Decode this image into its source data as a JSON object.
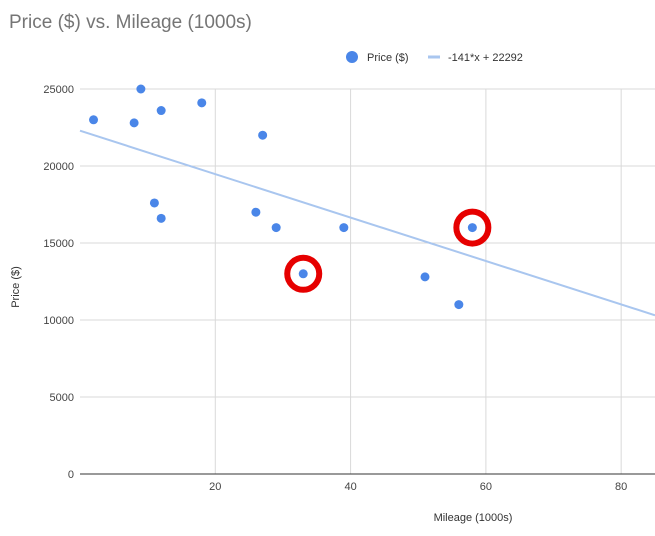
{
  "chart_data": {
    "type": "scatter",
    "title": "Price ($) vs. Mileage (1000s)",
    "xlabel": "Mileage (1000s)",
    "ylabel": "Price ($)",
    "xlim": [
      0,
      85
    ],
    "ylim": [
      0,
      25000
    ],
    "x_ticks": [
      20,
      40,
      60,
      80
    ],
    "y_ticks": [
      0,
      5000,
      10000,
      15000,
      20000,
      25000
    ],
    "grid": true,
    "legend": {
      "position": "top",
      "entries": [
        {
          "label": "Price ($)",
          "kind": "point",
          "color": "#4a86e8"
        },
        {
          "label": "-141*x + 22292",
          "kind": "line",
          "color": "#a9c6ef"
        }
      ]
    },
    "series": [
      {
        "name": "Price ($)",
        "color": "#4a86e8",
        "x": [
          2,
          9,
          8,
          12,
          18,
          27,
          11,
          12,
          26,
          29,
          39,
          33,
          51,
          58,
          56
        ],
        "y": [
          23000,
          25000,
          22800,
          23600,
          24100,
          22000,
          17600,
          16600,
          17000,
          16000,
          16000,
          13000,
          12800,
          16000,
          11000
        ]
      }
    ],
    "trendline": {
      "label": "-141*x + 22292",
      "slope": -141,
      "intercept": 22292,
      "color": "#a9c6ef"
    },
    "annotations": [
      {
        "type": "circle",
        "x": 33,
        "y": 13000,
        "color": "#e60000"
      },
      {
        "type": "circle",
        "x": 58,
        "y": 16000,
        "color": "#e60000"
      }
    ]
  }
}
